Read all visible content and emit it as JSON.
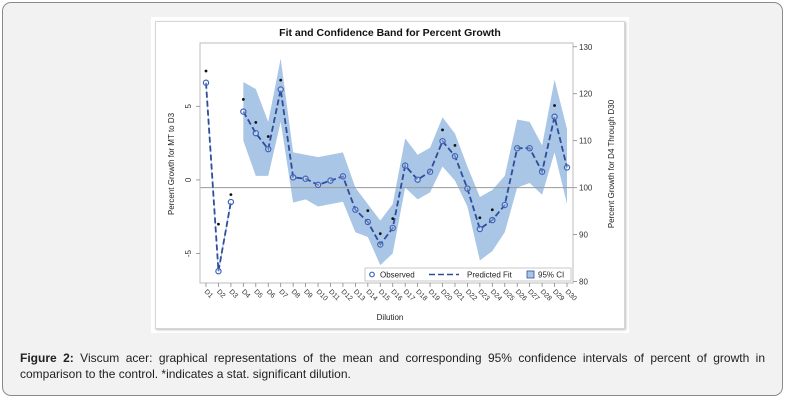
{
  "figure": {
    "caption_label": "Figure 2:",
    "caption_text": " Viscum acer: graphical representations of the mean and corresponding 95% confidence intervals of percent of growth in comparison to the control. *indicates a stat. significant dilution."
  },
  "colors": {
    "band": "#a9c6e6",
    "line": "#2e4d9a",
    "marker": "#3e63b8",
    "star": "#111111",
    "refline": "#9a9a9a"
  },
  "chart_data": {
    "type": "line",
    "title": "Fit and Confidence Band for Percent Growth",
    "xlabel": "Dilution",
    "ylabel_left": "Percent Growth for MT to D3",
    "ylabel_right": "Percent Growth for D4 Through D30",
    "categories": [
      "D1",
      "D2",
      "D3",
      "D4",
      "D5",
      "D6",
      "D7",
      "D8",
      "D9",
      "D10",
      "D11",
      "D12",
      "D13",
      "D14",
      "D15",
      "D16",
      "D17",
      "D18",
      "D19",
      "D20",
      "D21",
      "D22",
      "D23",
      "D24",
      "D25",
      "D26",
      "D27",
      "D28",
      "D29",
      "D30"
    ],
    "left_axis": {
      "range": [
        -7.0,
        9.3
      ],
      "ticks": [
        -5,
        0,
        5
      ],
      "tick_labels": [
        "-5",
        "0",
        "5"
      ]
    },
    "right_axis": {
      "range": [
        79.7,
        130.8
      ],
      "ticks": [
        80,
        90,
        100,
        110,
        120,
        130
      ],
      "tick_labels": [
        "80",
        "90",
        "100",
        "110",
        "120",
        "130"
      ]
    },
    "reference_line": {
      "axis": "right",
      "value": 100
    },
    "series": [
      {
        "name": "MT to D3",
        "axis": "left",
        "categories": [
          "D1",
          "D2",
          "D3"
        ],
        "observed": [
          6.6,
          -6.2,
          -1.5
        ],
        "fit": [
          6.6,
          -6.2,
          -1.5
        ],
        "ci_lower": [
          6.4,
          -6.4,
          -1.7
        ],
        "ci_upper": [
          6.8,
          -6.0,
          -1.3
        ],
        "significant": [
          true,
          true,
          true
        ],
        "star_values": [
          7.4,
          -3.0,
          -1.0
        ]
      },
      {
        "name": "D4 Through D30",
        "axis": "right",
        "categories": [
          "D4",
          "D5",
          "D6",
          "D7",
          "D8",
          "D9",
          "D10",
          "D11",
          "D12",
          "D13",
          "D14",
          "D15",
          "D16",
          "D17",
          "D18",
          "D19",
          "D20",
          "D21",
          "D22",
          "D23",
          "D24",
          "D25",
          "D26",
          "D27",
          "D28",
          "D29",
          "D30"
        ],
        "observed": [
          116.2,
          111.6,
          108.2,
          120.9,
          102.2,
          101.9,
          100.6,
          101.5,
          102.4,
          95.3,
          92.7,
          87.9,
          91.4,
          104.7,
          101.7,
          103.4,
          109.9,
          106.7,
          99.8,
          91.2,
          93.1,
          96.3,
          108.4,
          108.4,
          103.4,
          115.1,
          104.3
        ],
        "fit": [
          116.2,
          111.6,
          108.2,
          120.9,
          102.2,
          101.9,
          100.6,
          101.5,
          102.4,
          95.3,
          92.7,
          87.9,
          91.4,
          104.7,
          101.7,
          103.4,
          109.9,
          106.7,
          99.8,
          91.2,
          93.1,
          96.3,
          108.4,
          108.4,
          103.4,
          115.1,
          104.3
        ],
        "ci_lower": [
          110.0,
          102.5,
          102.5,
          114.0,
          96.8,
          97.5,
          96.0,
          96.5,
          97.0,
          90.5,
          89.5,
          83.5,
          86.0,
          100.0,
          97.5,
          99.0,
          104.5,
          101.5,
          96.0,
          84.5,
          86.5,
          90.5,
          100.0,
          101.0,
          98.5,
          107.5,
          96.5
        ],
        "ci_upper": [
          122.5,
          121.0,
          114.0,
          127.5,
          107.5,
          107.0,
          106.5,
          107.0,
          107.5,
          100.0,
          96.5,
          93.0,
          96.5,
          110.5,
          107.0,
          108.5,
          115.0,
          111.5,
          104.5,
          98.0,
          99.5,
          102.5,
          114.5,
          114.0,
          109.0,
          123.0,
          112.5
        ],
        "significant": [
          true,
          true,
          true,
          true,
          false,
          false,
          false,
          false,
          false,
          false,
          true,
          true,
          true,
          false,
          false,
          false,
          true,
          true,
          false,
          true,
          true,
          false,
          false,
          false,
          false,
          true,
          false
        ],
        "star_values": [
          118.8,
          113.9,
          110.9,
          122.9,
          null,
          null,
          null,
          null,
          null,
          null,
          95.1,
          90.2,
          93.4,
          null,
          null,
          null,
          112.3,
          109.0,
          null,
          93.6,
          95.3,
          null,
          null,
          null,
          null,
          117.5,
          null
        ]
      }
    ],
    "legend": {
      "placement": "bottom-right-inside",
      "entries": [
        {
          "label": "Observed",
          "symbol": "circle"
        },
        {
          "label": "Predicted Fit",
          "symbol": "dashed-line"
        },
        {
          "label": "95% CI",
          "symbol": "filled-square"
        }
      ]
    },
    "grid": false
  }
}
